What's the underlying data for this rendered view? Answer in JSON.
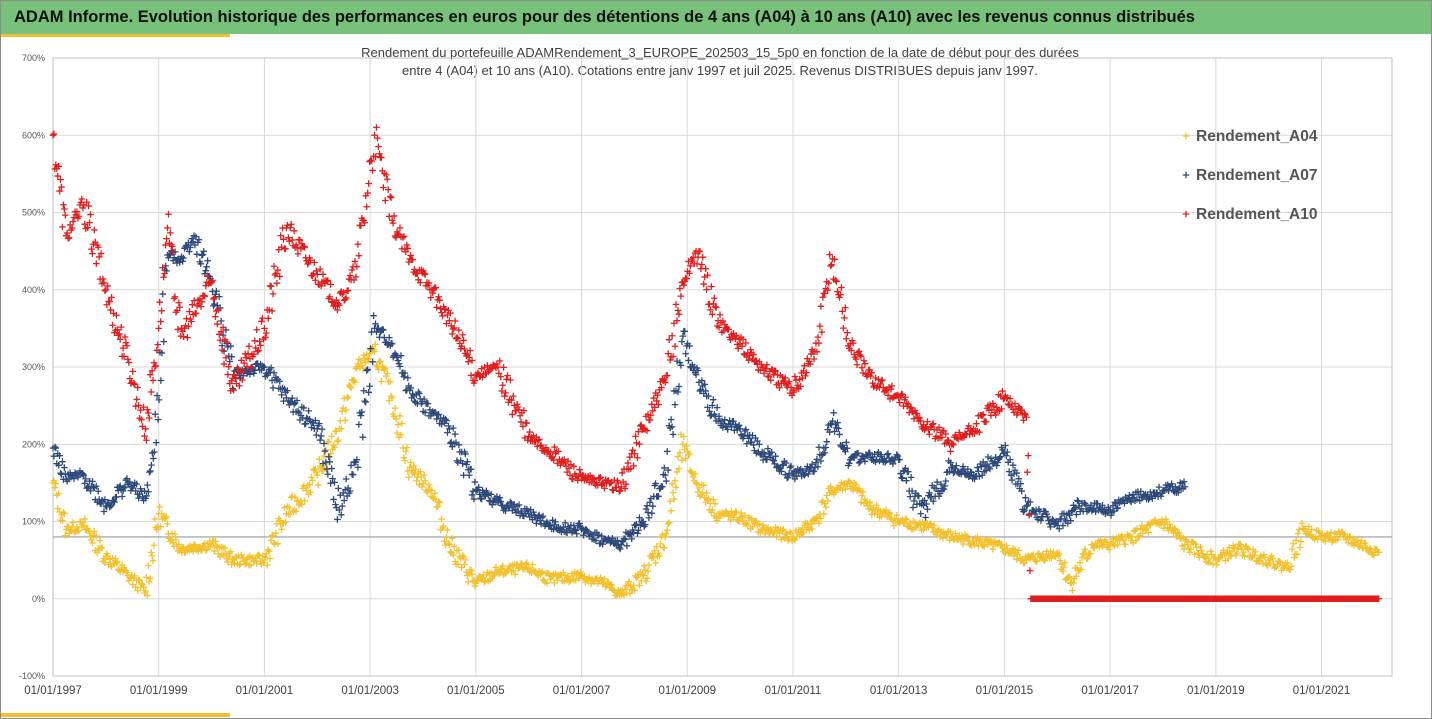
{
  "header": {
    "title": "ADAM Informe. Evolution historique des performances en euros pour des détentions de 4 ans (A04) à 10 ans (A10) avec les revenus connus distribués"
  },
  "chart_data": {
    "type": "scatter",
    "title_lines": [
      "Rendement du portefeuille ADAMRendement_3_EUROPE_202503_15_5p0  en fonction de la date de début pour des durées",
      "entre 4 (A04) et 10 ans (A10). Cotations  entre janv 1997 et juil 2025. Revenus DISTRIBUES depuis janv 1997."
    ],
    "xlabel": "",
    "ylabel": "",
    "xlim": [
      "1997-01-01",
      "2022-05-01"
    ],
    "ylim": [
      -100,
      700
    ],
    "x_tick_values": [
      "1997-01-01",
      "1999-01-01",
      "2001-01-01",
      "2003-01-01",
      "2005-01-01",
      "2007-01-01",
      "2009-01-01",
      "2011-01-01",
      "2013-01-01",
      "2015-01-01",
      "2017-01-01",
      "2019-01-01",
      "2021-01-01"
    ],
    "x_tick_labels": [
      "01/01/1997",
      "01/01/1999",
      "01/01/2001",
      "01/01/2003",
      "01/01/2005",
      "01/01/2007",
      "01/01/2009",
      "01/01/2011",
      "01/01/2013",
      "01/01/2015",
      "01/01/2017",
      "01/01/2019",
      "01/01/2021"
    ],
    "y_tick_values": [
      -100,
      0,
      100,
      200,
      300,
      400,
      500,
      600,
      700
    ],
    "y_tick_labels": [
      "-100%",
      "0%",
      "100%",
      "200%",
      "300%",
      "400%",
      "500%",
      "600%",
      "700%"
    ],
    "reference_line_y": 80,
    "legend_position": "top-right",
    "grid": true,
    "marker": "+",
    "series": [
      {
        "name": "Rendement_A04",
        "color": "#f2c12e",
        "points": [
          [
            "1997-01",
            150
          ],
          [
            "1997-04",
            90
          ],
          [
            "1997-08",
            95
          ],
          [
            "1998-01",
            55
          ],
          [
            "1998-06",
            30
          ],
          [
            "1998-10",
            10
          ],
          [
            "1999-01",
            110
          ],
          [
            "1999-06",
            65
          ],
          [
            "2000-01",
            70
          ],
          [
            "2000-06",
            50
          ],
          [
            "2001-01",
            50
          ],
          [
            "2001-06",
            110
          ],
          [
            "2002-01",
            160
          ],
          [
            "2002-06",
            220
          ],
          [
            "2002-10",
            300
          ],
          [
            "2003-02",
            320
          ],
          [
            "2003-06",
            260
          ],
          [
            "2003-10",
            170
          ],
          [
            "2004-03",
            140
          ],
          [
            "2004-07",
            70
          ],
          [
            "2005-01",
            20
          ],
          [
            "2005-06",
            35
          ],
          [
            "2006-01",
            40
          ],
          [
            "2006-06",
            25
          ],
          [
            "2007-01",
            30
          ],
          [
            "2007-06",
            20
          ],
          [
            "2007-10",
            5
          ],
          [
            "2008-03",
            30
          ],
          [
            "2008-08",
            80
          ],
          [
            "2008-12",
            200
          ],
          [
            "2009-03",
            150
          ],
          [
            "2009-08",
            110
          ],
          [
            "2010-01",
            105
          ],
          [
            "2010-06",
            90
          ],
          [
            "2011-01",
            80
          ],
          [
            "2011-06",
            100
          ],
          [
            "2011-10",
            140
          ],
          [
            "2012-02",
            150
          ],
          [
            "2012-06",
            120
          ],
          [
            "2013-01",
            100
          ],
          [
            "2013-06",
            95
          ],
          [
            "2014-01",
            80
          ],
          [
            "2014-06",
            75
          ],
          [
            "2015-01",
            65
          ],
          [
            "2015-06",
            50
          ],
          [
            "2016-01",
            60
          ],
          [
            "2016-04",
            20
          ],
          [
            "2016-09",
            70
          ],
          [
            "2017-01",
            70
          ],
          [
            "2017-06",
            80
          ],
          [
            "2018-01",
            100
          ],
          [
            "2018-06",
            70
          ],
          [
            "2019-01",
            50
          ],
          [
            "2019-06",
            65
          ],
          [
            "2020-01",
            50
          ],
          [
            "2020-05",
            40
          ],
          [
            "2020-09",
            90
          ],
          [
            "2021-01",
            80
          ],
          [
            "2021-06",
            80
          ],
          [
            "2021-12",
            65
          ],
          [
            "2022-02",
            60
          ]
        ]
      },
      {
        "name": "Rendement_A07",
        "color": "#2e4a7a",
        "points": [
          [
            "1997-01",
            195
          ],
          [
            "1997-04",
            155
          ],
          [
            "1997-08",
            160
          ],
          [
            "1998-01",
            120
          ],
          [
            "1998-06",
            150
          ],
          [
            "1998-10",
            130
          ],
          [
            "1998-12",
            190
          ],
          [
            "1999-03",
            445
          ],
          [
            "1999-06",
            440
          ],
          [
            "1999-09",
            470
          ],
          [
            "2000-01",
            410
          ],
          [
            "2000-06",
            290
          ],
          [
            "2001-01",
            300
          ],
          [
            "2001-06",
            260
          ],
          [
            "2002-01",
            220
          ],
          [
            "2002-06",
            115
          ],
          [
            "2002-10",
            180
          ],
          [
            "2003-02",
            350
          ],
          [
            "2003-06",
            330
          ],
          [
            "2003-10",
            270
          ],
          [
            "2004-03",
            240
          ],
          [
            "2004-07",
            220
          ],
          [
            "2005-01",
            140
          ],
          [
            "2005-06",
            125
          ],
          [
            "2006-01",
            110
          ],
          [
            "2006-06",
            95
          ],
          [
            "2007-01",
            90
          ],
          [
            "2007-06",
            75
          ],
          [
            "2007-10",
            70
          ],
          [
            "2008-03",
            100
          ],
          [
            "2008-08",
            160
          ],
          [
            "2008-12",
            340
          ],
          [
            "2009-03",
            290
          ],
          [
            "2009-08",
            230
          ],
          [
            "2010-01",
            220
          ],
          [
            "2010-06",
            190
          ],
          [
            "2011-01",
            160
          ],
          [
            "2011-06",
            170
          ],
          [
            "2011-10",
            230
          ],
          [
            "2012-02",
            180
          ],
          [
            "2012-06",
            185
          ],
          [
            "2013-01",
            180
          ],
          [
            "2013-06",
            110
          ],
          [
            "2014-01",
            170
          ],
          [
            "2014-06",
            160
          ],
          [
            "2015-01",
            190
          ],
          [
            "2015-06",
            120
          ],
          [
            "2016-01",
            95
          ],
          [
            "2016-06",
            120
          ],
          [
            "2017-01",
            115
          ],
          [
            "2017-06",
            130
          ],
          [
            "2018-01",
            140
          ],
          [
            "2018-06",
            145
          ]
        ]
      },
      {
        "name": "Rendement_A10",
        "color": "#e01e1e",
        "points": [
          [
            "1997-01",
            600
          ],
          [
            "1997-04",
            470
          ],
          [
            "1997-08",
            510
          ],
          [
            "1998-01",
            400
          ],
          [
            "1998-06",
            310
          ],
          [
            "1998-10",
            220
          ],
          [
            "1999-01",
            350
          ],
          [
            "1999-03",
            480
          ],
          [
            "1999-06",
            340
          ],
          [
            "2000-01",
            410
          ],
          [
            "2000-06",
            270
          ],
          [
            "2001-01",
            350
          ],
          [
            "2001-06",
            480
          ],
          [
            "2002-01",
            420
          ],
          [
            "2002-06",
            380
          ],
          [
            "2002-10",
            430
          ],
          [
            "2003-02",
            600
          ],
          [
            "2003-06",
            490
          ],
          [
            "2003-10",
            440
          ],
          [
            "2004-03",
            400
          ],
          [
            "2004-07",
            360
          ],
          [
            "2005-01",
            290
          ],
          [
            "2005-06",
            300
          ],
          [
            "2006-01",
            210
          ],
          [
            "2006-06",
            190
          ],
          [
            "2007-01",
            155
          ],
          [
            "2007-06",
            150
          ],
          [
            "2007-10",
            145
          ],
          [
            "2008-03",
            220
          ],
          [
            "2008-08",
            280
          ],
          [
            "2008-12",
            410
          ],
          [
            "2009-03",
            450
          ],
          [
            "2009-08",
            360
          ],
          [
            "2010-01",
            330
          ],
          [
            "2010-06",
            300
          ],
          [
            "2011-01",
            270
          ],
          [
            "2011-06",
            320
          ],
          [
            "2011-10",
            440
          ],
          [
            "2012-02",
            330
          ],
          [
            "2012-06",
            290
          ],
          [
            "2013-01",
            260
          ],
          [
            "2013-06",
            230
          ],
          [
            "2014-01",
            200
          ],
          [
            "2014-06",
            220
          ],
          [
            "2015-01",
            260
          ],
          [
            "2015-06",
            235
          ],
          [
            "2015-07",
            0
          ],
          [
            "2016-01",
            0
          ],
          [
            "2017-01",
            0
          ],
          [
            "2018-01",
            0
          ],
          [
            "2019-01",
            0
          ],
          [
            "2020-01",
            0
          ],
          [
            "2021-01",
            0
          ],
          [
            "2022-02",
            0
          ]
        ]
      }
    ]
  }
}
